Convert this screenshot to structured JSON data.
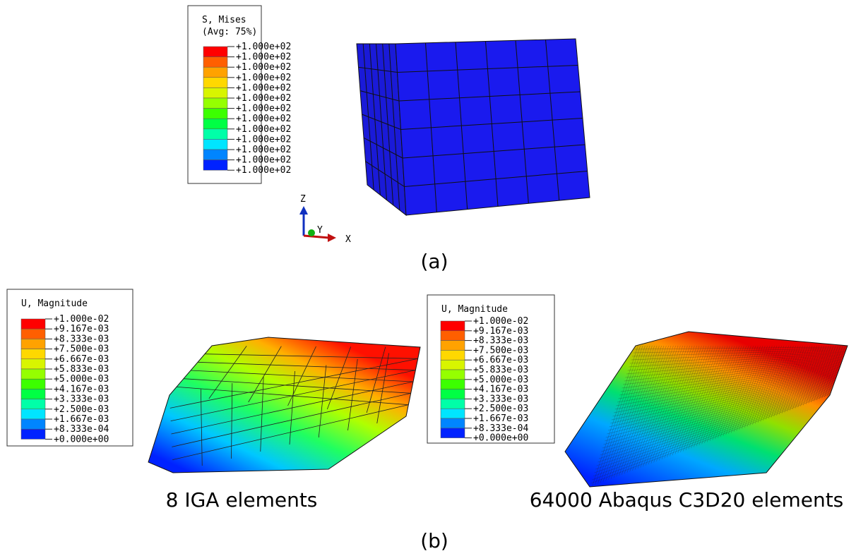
{
  "panel_a": {
    "legend": {
      "title": "S, Mises",
      "subtitle": "(Avg: 75%)",
      "labels": [
        "+1.000e+02",
        "+1.000e+02",
        "+1.000e+02",
        "+1.000e+02",
        "+1.000e+02",
        "+1.000e+02",
        "+1.000e+02",
        "+1.000e+02",
        "+1.000e+02",
        "+1.000e+02",
        "+1.000e+02",
        "+1.000e+02",
        "+1.000e+02"
      ]
    },
    "triad": {
      "z": "Z",
      "y": "Y",
      "x": "X"
    },
    "caption": "(a)"
  },
  "panel_b": {
    "left": {
      "legend": {
        "title": "U, Magnitude",
        "labels": [
          "+1.000e-02",
          "+9.167e-03",
          "+8.333e-03",
          "+7.500e-03",
          "+6.667e-03",
          "+5.833e-03",
          "+5.000e-03",
          "+4.167e-03",
          "+3.333e-03",
          "+2.500e-03",
          "+1.667e-03",
          "+8.333e-04",
          "+0.000e+00"
        ]
      },
      "caption": "8 IGA elements"
    },
    "right": {
      "legend": {
        "title": "U, Magnitude",
        "labels": [
          "+1.000e-02",
          "+9.167e-03",
          "+8.333e-03",
          "+7.500e-03",
          "+6.667e-03",
          "+5.833e-03",
          "+5.000e-03",
          "+4.167e-03",
          "+3.333e-03",
          "+2.500e-03",
          "+1.667e-03",
          "+8.333e-04",
          "+0.000e+00"
        ]
      },
      "caption": "64000 Abaqus C3D20 elements"
    },
    "caption": "(b)"
  }
}
